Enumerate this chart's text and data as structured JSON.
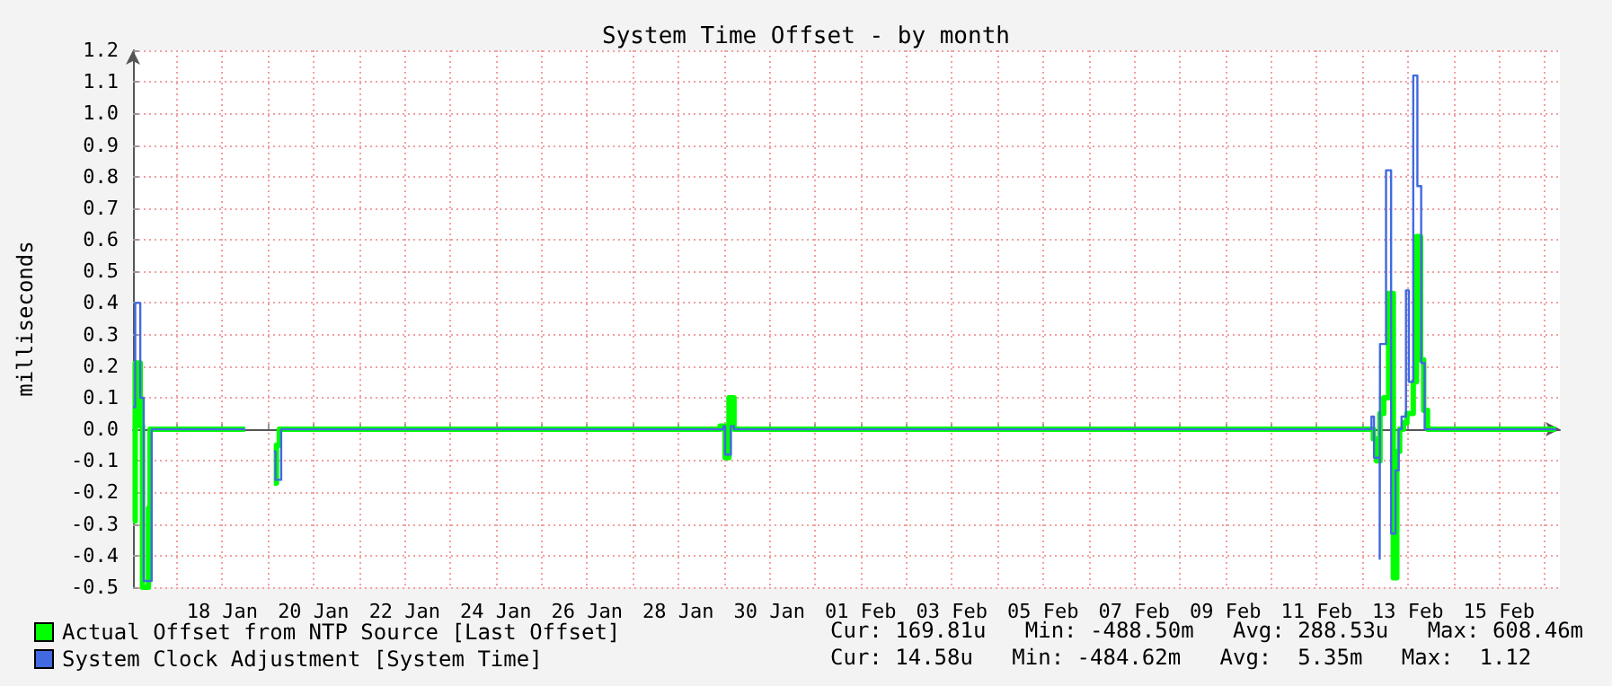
{
  "chart_data": {
    "type": "step",
    "title": "System Time Offset - by month",
    "ylabel": "milliseconds",
    "xlim": [
      "--01-16T01:00",
      "--02-16T08:00"
    ],
    "ylim": [
      -0.5,
      1.2
    ],
    "xticks": [
      {
        "value": "--01-17",
        "label": null
      },
      {
        "value": "--01-18",
        "label": "18 Jan"
      },
      {
        "value": "--01-19",
        "label": null
      },
      {
        "value": "--01-20",
        "label": "20 Jan"
      },
      {
        "value": "--01-21",
        "label": null
      },
      {
        "value": "--01-22",
        "label": "22 Jan"
      },
      {
        "value": "--01-23",
        "label": null
      },
      {
        "value": "--01-24",
        "label": "24 Jan"
      },
      {
        "value": "--01-25",
        "label": null
      },
      {
        "value": "--01-26",
        "label": "26 Jan"
      },
      {
        "value": "--01-27",
        "label": null
      },
      {
        "value": "--01-28",
        "label": "28 Jan"
      },
      {
        "value": "--01-29",
        "label": null
      },
      {
        "value": "--01-30",
        "label": "30 Jan"
      },
      {
        "value": "--01-31",
        "label": null
      },
      {
        "value": "--02-01",
        "label": "01 Feb"
      },
      {
        "value": "--02-02",
        "label": null
      },
      {
        "value": "--02-03",
        "label": "03 Feb"
      },
      {
        "value": "--02-04",
        "label": null
      },
      {
        "value": "--02-05",
        "label": "05 Feb"
      },
      {
        "value": "--02-06",
        "label": null
      },
      {
        "value": "--02-07",
        "label": "07 Feb"
      },
      {
        "value": "--02-08",
        "label": null
      },
      {
        "value": "--02-09",
        "label": "09 Feb"
      },
      {
        "value": "--02-10",
        "label": null
      },
      {
        "value": "--02-11",
        "label": "11 Feb"
      },
      {
        "value": "--02-12",
        "label": null
      },
      {
        "value": "--02-13",
        "label": "13 Feb"
      },
      {
        "value": "--02-14",
        "label": null
      },
      {
        "value": "--02-15",
        "label": "15 Feb"
      },
      {
        "value": "--02-16",
        "label": null
      }
    ],
    "yticks": [
      -0.5,
      -0.4,
      -0.3,
      -0.2,
      -0.1,
      {
        "value": 0,
        "label": "0.0"
      },
      0.1,
      0.2,
      0.3,
      0.4,
      0.5,
      0.6,
      0.7,
      0.8,
      0.9,
      {
        "value": 1,
        "label": "1.0"
      },
      1.1,
      1.2
    ],
    "grid": true,
    "legend": "bottom left",
    "series": [
      {
        "name": "Actual Offset from NTP Source [Last Offset]",
        "color": "#00ff00",
        "x": [
          "--01-16T01:00",
          "--01-16T02:10",
          "--01-16T04:50",
          "--01-16T06:00",
          "--01-16T06:40",
          "--01-16T09:10",
          "--01-16T10:00",
          "--01-18T02:00",
          "--01-18T12:00",
          "--01-19T03:10",
          "--01-19T04:30",
          "--01-19T06:00",
          "--01-28T22:00",
          "--01-29T00:40",
          "--01-29T02:40",
          "--01-29T05:20",
          "--02-12T05:50",
          "--02-12T07:30",
          "--02-12T09:20",
          "--02-12T11:20",
          "--02-12T13:50",
          "--02-12T16:20",
          "--02-12T18:10",
          "--02-12T19:40",
          "--02-12T21:40",
          "--02-12T23:30",
          "--02-13T02:50",
          "--02-13T04:30",
          "--02-13T06:40",
          "--02-13T08:20",
          "--02-13T10:20",
          "--02-16T06:00"
        ],
        "values": [
          -0.29,
          0.21,
          0.01,
          -0.5,
          -0.5,
          -0.25,
          0,
          0,
          null,
          -0.17,
          -0.05,
          0,
          0.01,
          -0.09,
          0.1,
          0,
          -0.03,
          -0.1,
          0.05,
          0.1,
          0.43,
          -0.47,
          -0.07,
          0,
          0.02,
          0.05,
          0.15,
          0.61,
          0.22,
          0.06,
          0,
          0
        ]
      },
      {
        "name": "System Clock Adjustment [System Time]",
        "color": "#4169e1",
        "x": [
          "--01-16T01:00",
          "--01-16T02:10",
          "--01-16T04:50",
          "--01-16T06:40",
          "--01-16T10:50",
          "--01-18T02:00",
          "--01-18T12:00",
          "--01-19T03:10",
          "--01-19T04:00",
          "--01-19T07:00",
          "--01-28T23:50",
          "--01-29T00:40",
          "--01-29T03:40",
          "--01-29T05:20",
          "--02-12T04:50",
          "--02-12T06:10",
          "--02-12T09:10",
          "--02-12T09:20",
          "--02-12T12:30",
          "--02-12T15:10",
          "--02-12T17:30",
          "--02-12T19:10",
          "--02-12T20:40",
          "--02-12T23:00",
          "--02-13T00:30",
          "--02-13T02:50",
          "--02-13T05:00",
          "--02-13T07:00",
          "--02-13T08:50",
          "--02-13T10:50",
          "--02-16T06:00"
        ],
        "values": [
          0.07,
          0.4,
          0.1,
          -0.48,
          0,
          0,
          null,
          -0.07,
          -0.16,
          0,
          0.01,
          -0.08,
          0.01,
          0,
          0.04,
          -0.09,
          -0.41,
          0.27,
          0.82,
          -0.33,
          -0.13,
          0,
          0.04,
          0.44,
          0.15,
          1.12,
          0.77,
          0.21,
          0,
          0,
          0
        ]
      }
    ],
    "annotations": [
      "Cur: 169.81u   Min: -488.50m   Avg: 288.53u   Max: 608.46m",
      "Cur: 14.58u   Min: -484.62m   Avg:  5.35m   Max:  1.12"
    ]
  }
}
